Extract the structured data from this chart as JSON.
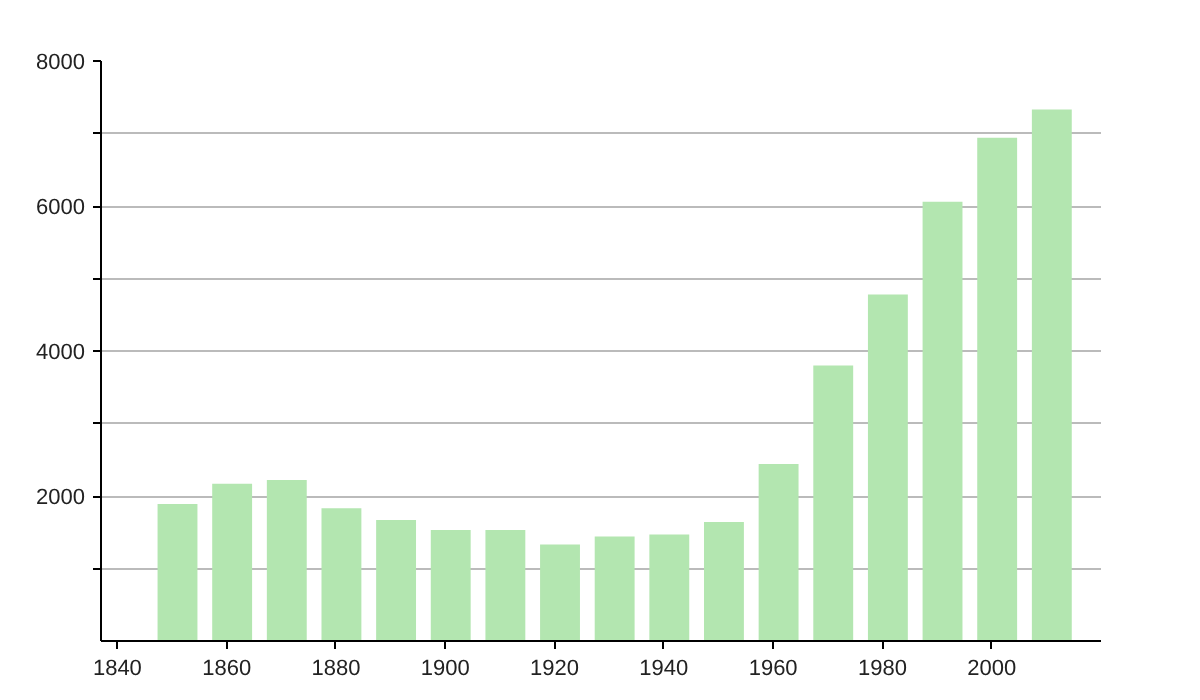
{
  "chart_data": {
    "type": "bar",
    "x": [
      1851,
      1861,
      1871,
      1881,
      1891,
      1901,
      1911,
      1921,
      1931,
      1941,
      1951,
      1961,
      1971,
      1981,
      1991,
      2001,
      2011
    ],
    "values": [
      1890,
      2170,
      2220,
      1830,
      1670,
      1530,
      1530,
      1330,
      1440,
      1470,
      1640,
      2440,
      3800,
      4780,
      6060,
      6940,
      7330
    ],
    "color": "#b3e6b0",
    "xlim": [
      1837,
      2020
    ],
    "xticks": [
      1840,
      1860,
      1880,
      1900,
      1920,
      1940,
      1960,
      1980,
      2000
    ],
    "ylim": [
      0,
      8000
    ],
    "yticks": [
      {
        "value": 1000,
        "label": null
      },
      2000,
      {
        "value": 3000,
        "label": null
      },
      4000,
      {
        "value": 5000,
        "label": null
      },
      6000,
      {
        "value": 7000,
        "label": null
      },
      8000
    ],
    "grid": "y"
  }
}
